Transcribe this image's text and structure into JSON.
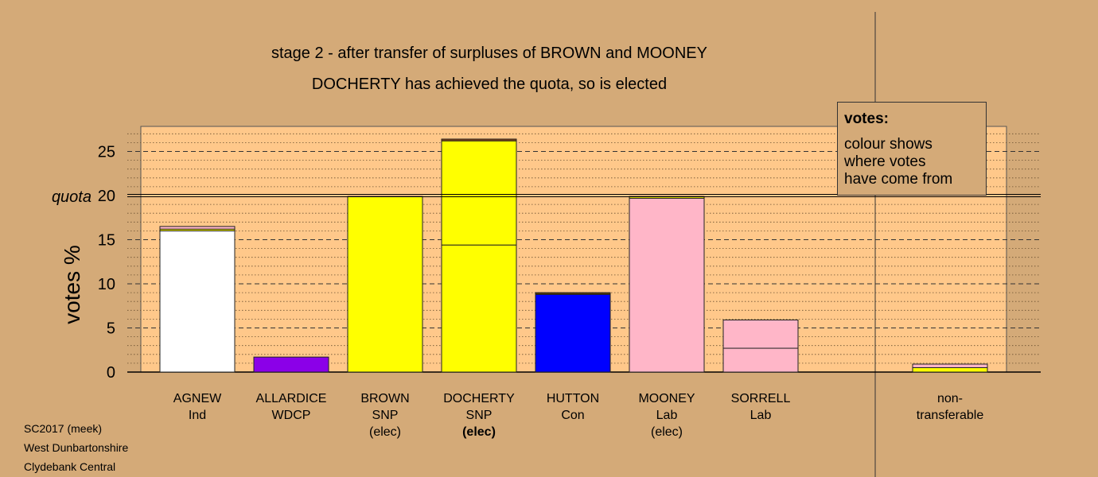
{
  "titles": {
    "line1": "stage 2 - after transfer of surpluses of BROWN and MOONEY",
    "line2": "DOCHERTY has achieved the quota, so is elected"
  },
  "legend": {
    "title": "votes:",
    "lines": [
      "colour shows",
      "where votes",
      "have come from"
    ]
  },
  "footer": [
    "SC2017 (meek)",
    "West Dunbartonshire",
    "Clydebank Central"
  ],
  "chart_data": {
    "type": "bar",
    "stacked": true,
    "ylabel": "votes %",
    "quota_label": "quota",
    "quota": 20,
    "ylim": [
      0,
      27.5
    ],
    "yticks": [
      0,
      5,
      10,
      15,
      20,
      25
    ],
    "grid": true,
    "legend_position": "top-right",
    "candidates": [
      {
        "name": "AGNEW",
        "party": "Ind",
        "status": "",
        "segments": [
          {
            "value": 16.0,
            "color": "#ffffff"
          },
          {
            "value": 0.2,
            "color": "#ffff00"
          },
          {
            "value": 0.3,
            "color": "#ffb6c8"
          }
        ]
      },
      {
        "name": "ALLARDICE",
        "party": "WDCP",
        "status": "",
        "segments": [
          {
            "value": 1.7,
            "color": "#8b00e8"
          }
        ]
      },
      {
        "name": "BROWN",
        "party": "SNP",
        "status": "(elec)",
        "segments": [
          {
            "value": 19.9,
            "color": "#ffff00"
          }
        ]
      },
      {
        "name": "DOCHERTY",
        "party": "SNP",
        "status": "(elec)",
        "status_bold": true,
        "segments": [
          {
            "value": 14.4,
            "color": "#ffff00"
          },
          {
            "value": 11.8,
            "color": "#ffff00"
          },
          {
            "value": 0.2,
            "color": "#8b4513"
          }
        ]
      },
      {
        "name": "HUTTON",
        "party": "Con",
        "status": "",
        "segments": [
          {
            "value": 8.8,
            "color": "#0000ff"
          },
          {
            "value": 0.2,
            "color": "#5a3a00"
          }
        ]
      },
      {
        "name": "MOONEY",
        "party": "Lab",
        "status": "(elec)",
        "segments": [
          {
            "value": 19.7,
            "color": "#ffb6c8"
          },
          {
            "value": 0.2,
            "color": "#ffff00"
          }
        ]
      },
      {
        "name": "SORRELL",
        "party": "Lab",
        "status": "",
        "segments": [
          {
            "value": 2.7,
            "color": "#ffb6c8"
          },
          {
            "value": 3.2,
            "color": "#ffb6c8"
          }
        ]
      }
    ],
    "non_transferable": {
      "label_line1": "non-",
      "label_line2": "transferable",
      "segments": [
        {
          "value": 0.5,
          "color": "#ffff00"
        },
        {
          "value": 0.4,
          "color": "#ffb6c8"
        }
      ]
    }
  }
}
